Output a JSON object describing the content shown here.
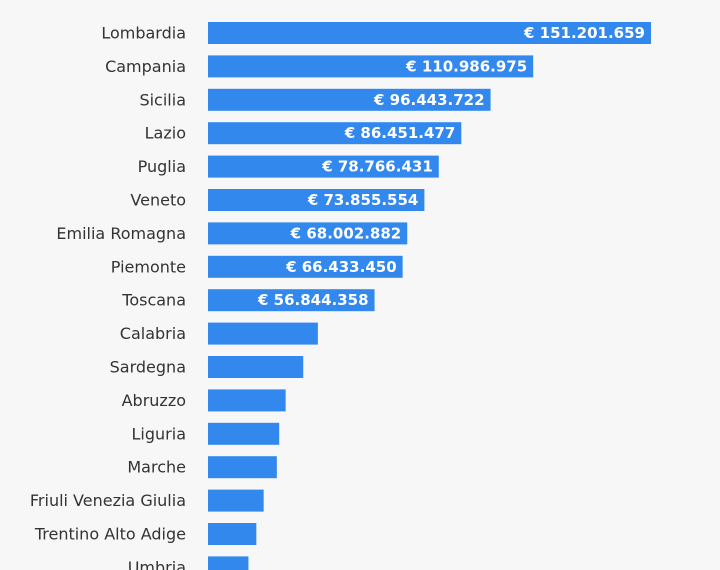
{
  "chart_data": {
    "type": "bar",
    "orientation": "horizontal",
    "title": "",
    "xlabel": "",
    "ylabel": "",
    "grid": false,
    "legend": "none",
    "colors": {
      "bar": "#3388ee",
      "background": "#f7f7f7",
      "category_text": "#333333",
      "value_text": "#ffffff"
    },
    "xlim": [
      0,
      151201659
    ],
    "categories": [
      "Lombardia",
      "Campania",
      "Sicilia",
      "Lazio",
      "Puglia",
      "Veneto",
      "Emilia Romagna",
      "Piemonte",
      "Toscana",
      "Calabria",
      "Sardegna",
      "Abruzzo",
      "Liguria",
      "Marche",
      "Friuli Venezia Giulia",
      "Trentino Alto Adige",
      "Umbria"
    ],
    "values": [
      151201659,
      110986975,
      96443722,
      86451477,
      78766431,
      73855554,
      68002882,
      66433450,
      56844358,
      37500000,
      32500000,
      26500000,
      24300000,
      23500000,
      19000000,
      16500000,
      13800000
    ],
    "value_labels": [
      "€ 151.201.659",
      "€ 110.986.975",
      "€ 96.443.722",
      "€ 86.451.477",
      "€ 78.766.431",
      "€ 73.855.554",
      "€ 68.002.882",
      "€ 66.433.450",
      "€ 56.844.358",
      "",
      "",
      "",
      "",
      "",
      "",
      "",
      ""
    ]
  }
}
